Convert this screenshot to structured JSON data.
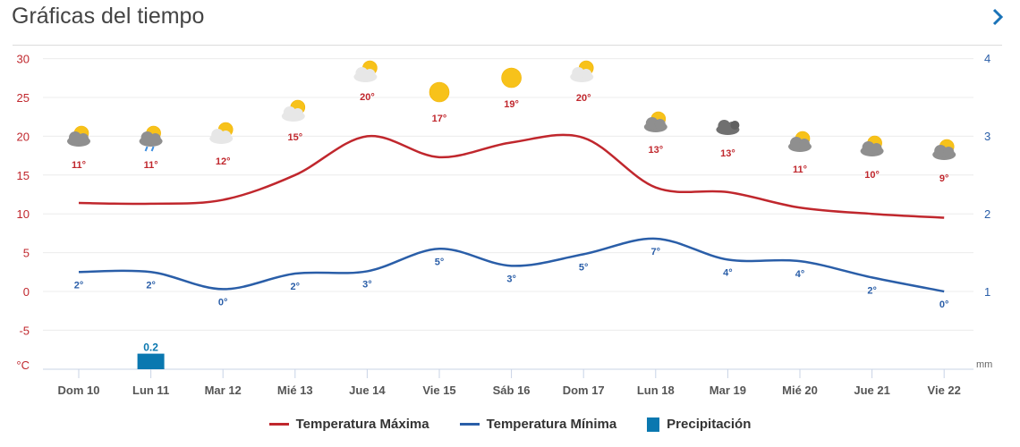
{
  "header": {
    "title": "Gráficas del tiempo",
    "next_icon": "chevron-right-icon"
  },
  "colors": {
    "max": "#c0272d",
    "min": "#2a5ea8",
    "precip": "#0a78b0",
    "left_axis": "#c0272d",
    "right_axis": "#2a5ea8",
    "grid": "#ececec",
    "day_label": "#555555"
  },
  "legend": {
    "max_label": "Temperatura Máxima",
    "min_label": "Temperatura Mínima",
    "precip_label": "Precipitación"
  },
  "axes": {
    "left_unit": "°C",
    "right_unit": "mm"
  },
  "chart_data": {
    "type": "line",
    "title": "Gráficas del tiempo",
    "categories": [
      "Dom 10",
      "Lun 11",
      "Mar 12",
      "Mié 13",
      "Jue 14",
      "Vie 15",
      "Sáb 16",
      "Dom 17",
      "Lun 18",
      "Mar 19",
      "Mié 20",
      "Jue 21",
      "Vie 22"
    ],
    "series": [
      {
        "name": "Temperatura Máxima",
        "axis": "left",
        "values": [
          11.4,
          11.3,
          11.8,
          15,
          20,
          17.3,
          19.2,
          19.8,
          13.4,
          12.8,
          10.8,
          10,
          9.5
        ],
        "labels": [
          "11°",
          "11°",
          "12°",
          "15°",
          "20°",
          "17°",
          "19°",
          "20°",
          "13°",
          "13°",
          "11°",
          "10°",
          "9°"
        ]
      },
      {
        "name": "Temperatura Mínima",
        "axis": "left",
        "values": [
          2.5,
          2.5,
          0.3,
          2.3,
          2.6,
          5.5,
          3.3,
          4.8,
          6.8,
          4.1,
          3.9,
          1.8,
          0
        ],
        "labels": [
          "2°",
          "2°",
          "0°",
          "2°",
          "3°",
          "5°",
          "3°",
          "5°",
          "7°",
          "4°",
          "4°",
          "2°",
          "0°"
        ]
      },
      {
        "name": "Precipitación",
        "type": "bar",
        "axis": "right",
        "values": [
          0,
          0.2,
          0,
          0,
          0,
          0,
          0,
          0,
          0,
          0,
          0,
          0,
          0
        ],
        "labels": [
          "",
          "0.2",
          "",
          "",
          "",
          "",
          "",
          "",
          "",
          "",
          "",
          "",
          ""
        ]
      }
    ],
    "weather_icons": [
      "sun-cloud-gray",
      "sun-cloud-rain",
      "sun-cloud-light",
      "sun-cloud-light",
      "sun-cloud-light",
      "sun",
      "sun",
      "sun-cloud-light",
      "sun-cloud-gray",
      "dark-cloud",
      "sun-cloud-gray",
      "sun-cloud-gray",
      "sun-cloud-gray"
    ],
    "y_left": {
      "label": "°C",
      "ticks": [
        30,
        25,
        20,
        15,
        10,
        5,
        0,
        -5
      ],
      "range": [
        -10,
        30
      ]
    },
    "y_right": {
      "label": "mm",
      "ticks": [
        4,
        3,
        2,
        1
      ],
      "range": [
        0,
        4
      ]
    },
    "xlabel": "",
    "ylabel": "°C",
    "grid": true,
    "legend_position": "bottom"
  }
}
